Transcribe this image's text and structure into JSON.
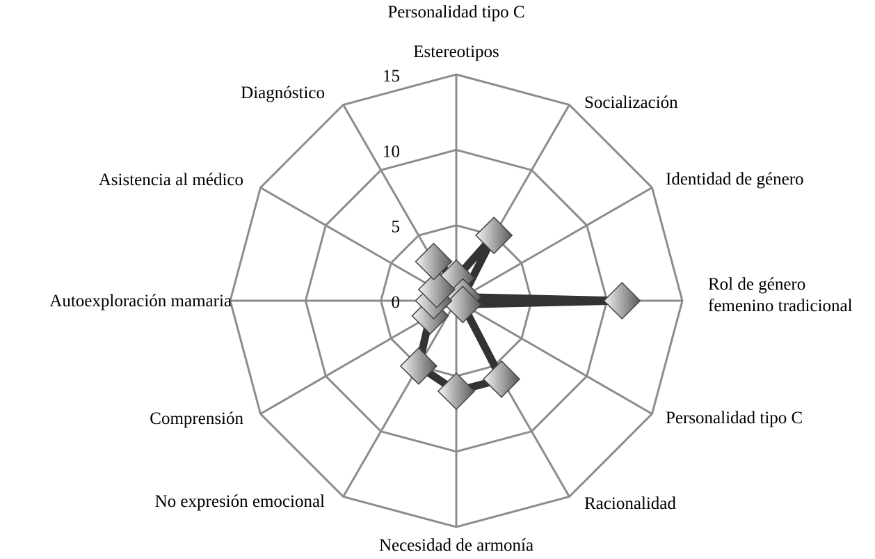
{
  "chart_data": {
    "type": "radar",
    "title": "Personalidad tipo C",
    "categories": [
      "Estereotipos",
      "Socialización",
      "Identidad de género",
      "Rol de género femenino tradicional",
      "Personalidad tipo C",
      "Racionalidad",
      "Necesidad de armonía",
      "No expresión emocional",
      "Comprensión",
      "Autoexploración mamaria",
      "Asistencia al médico",
      "Diagnóstico"
    ],
    "category_lines": [
      [
        "Estereotipos"
      ],
      [
        "Socialización"
      ],
      [
        "Identidad de género"
      ],
      [
        "Rol de género",
        "femenino tradicional"
      ],
      [
        "Personalidad tipo C"
      ],
      [
        "Racionalidad"
      ],
      [
        "Necesidad de armonía"
      ],
      [
        "No expresión emocional"
      ],
      [
        "Comprensión"
      ],
      [
        "Autoexploración mamaria"
      ],
      [
        "Asistencia al médico"
      ],
      [
        "Diagnóstico"
      ]
    ],
    "values": [
      1.5,
      5,
      0.5,
      11,
      0.5,
      6,
      6,
      5,
      2,
      1.5,
      1.5,
      3
    ],
    "rlim": [
      0,
      15
    ],
    "ticks": [
      "0",
      "5",
      "10",
      "15"
    ],
    "grid": true,
    "line_color": "#333333",
    "grid_color": "#8c8c8c",
    "marker": "diamond"
  }
}
